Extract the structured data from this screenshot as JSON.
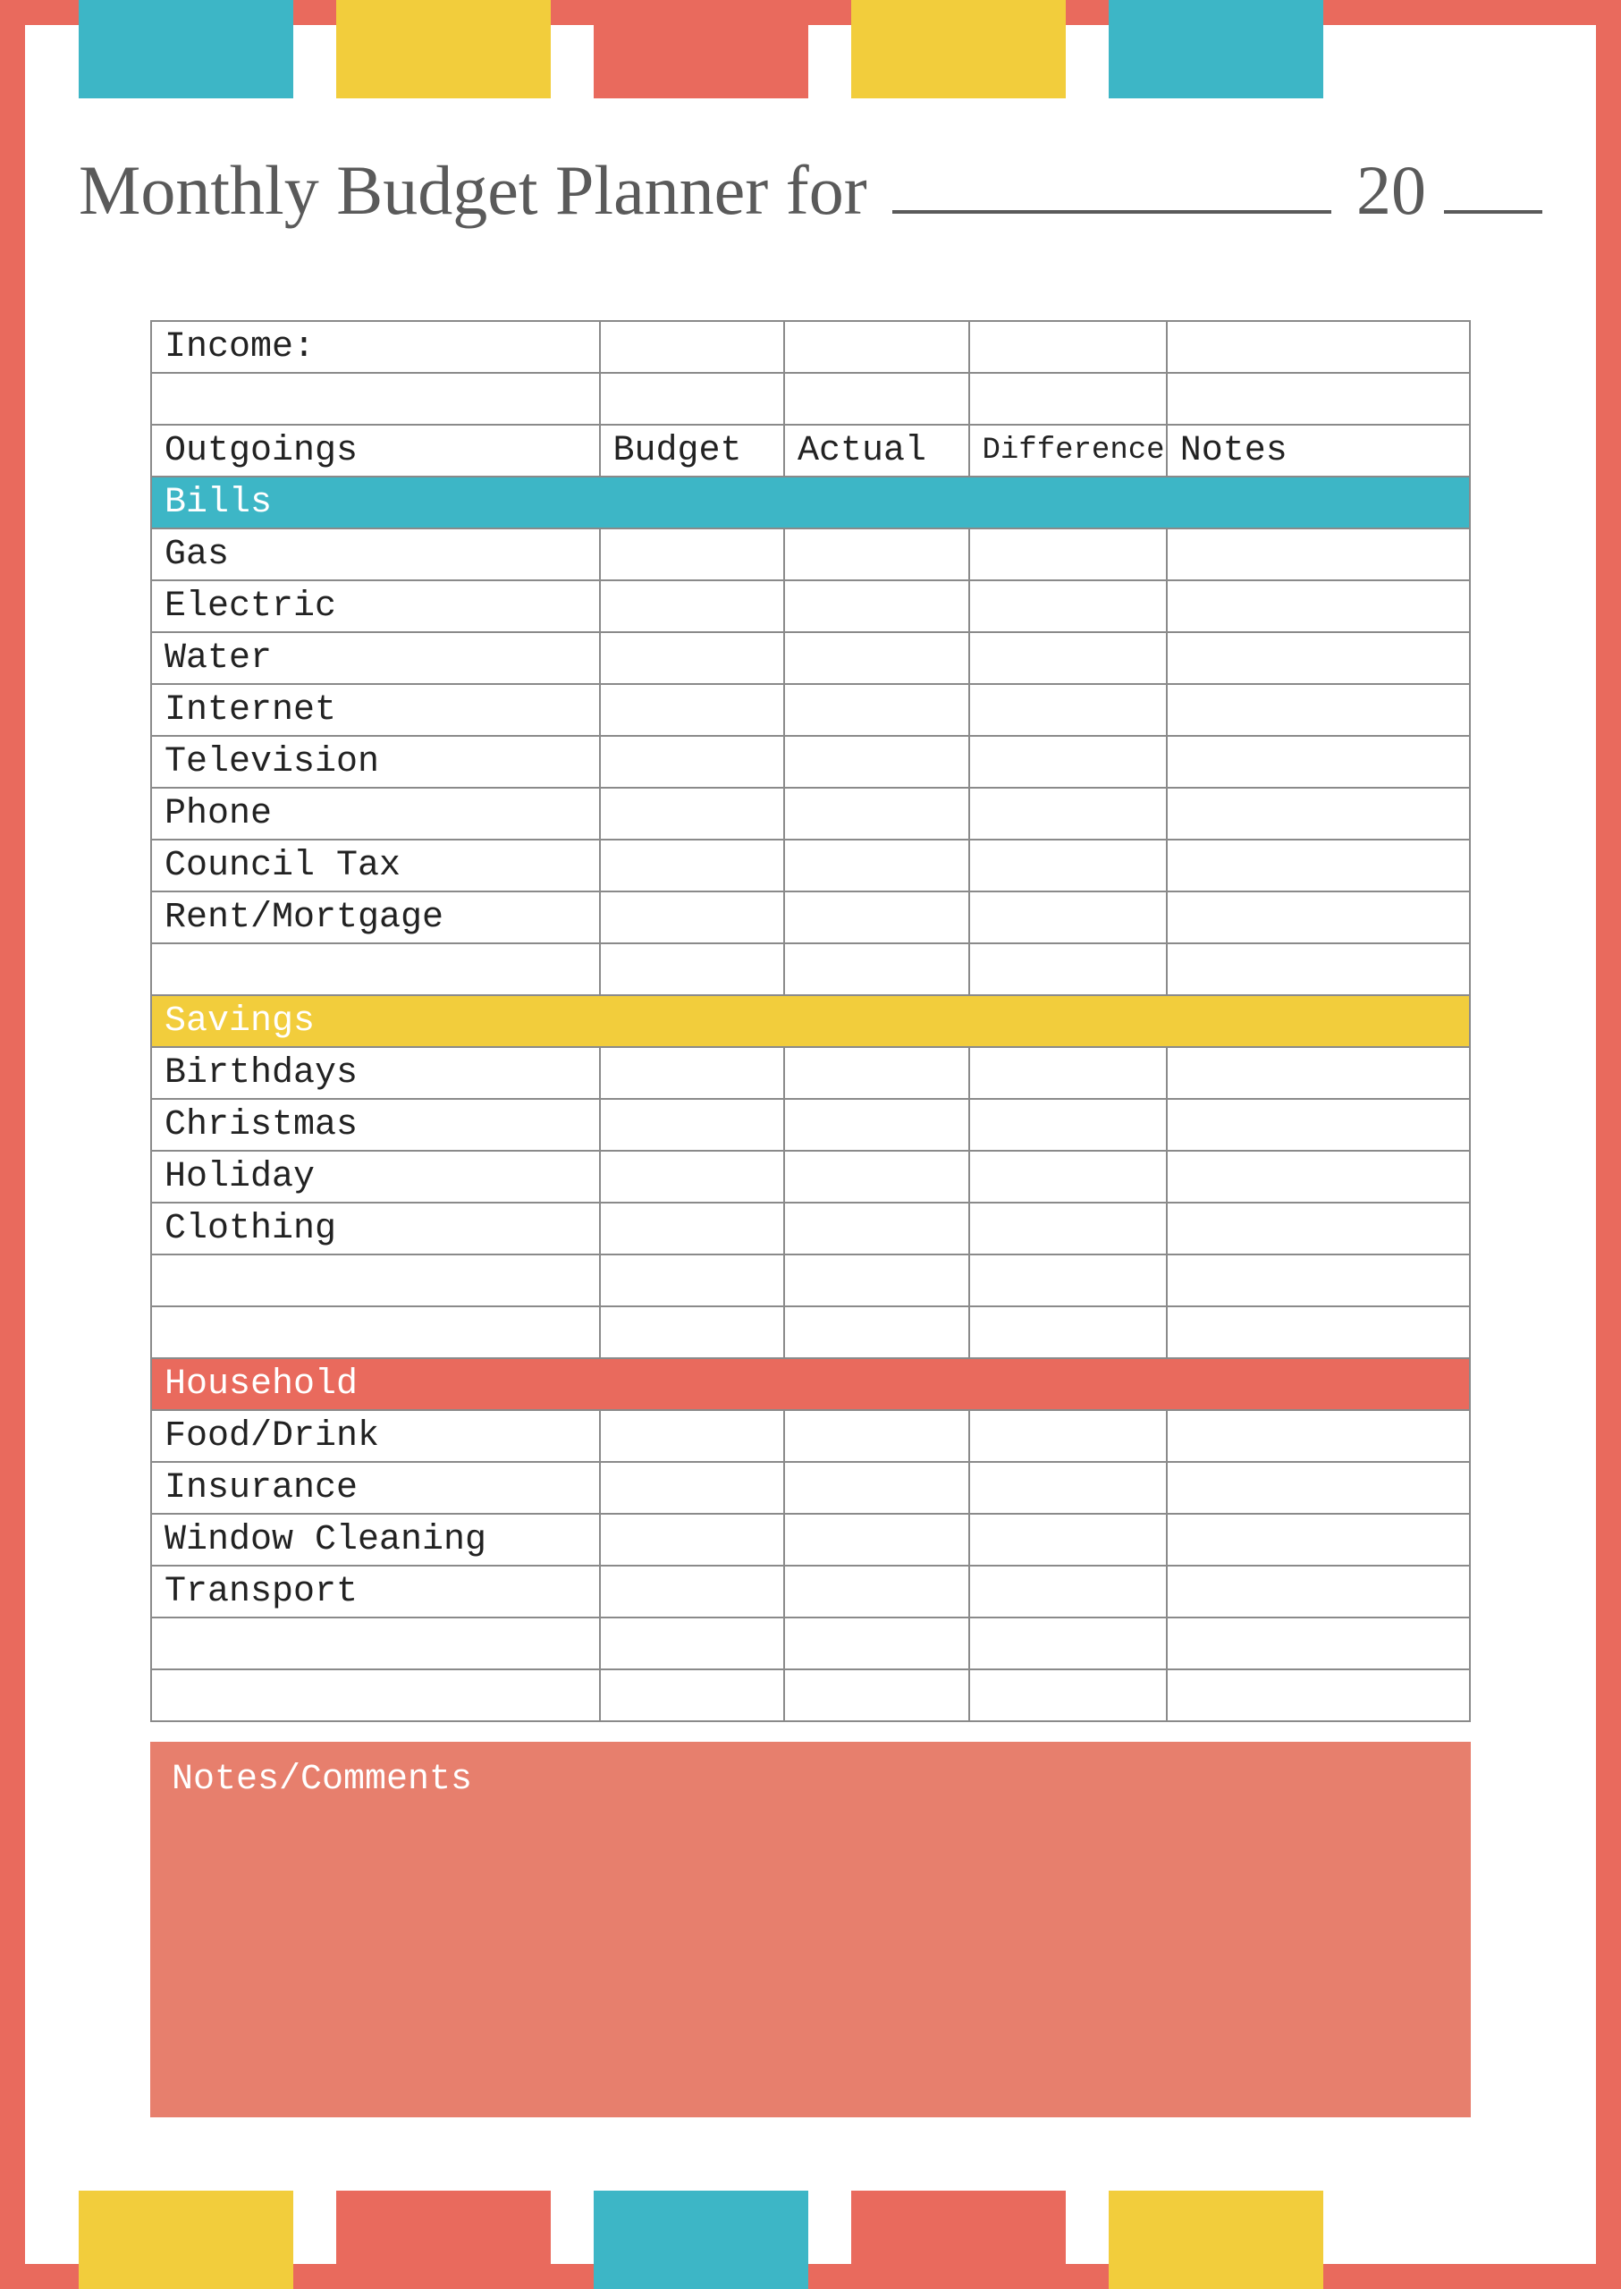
{
  "colors": {
    "border": "#e96a5d",
    "teal": "#3db6c6",
    "yellow": "#f2cd3c",
    "coral": "#e96a5d",
    "notes_bg": "#e77f6d",
    "text_grey": "#5a5a5a",
    "cell_border": "#8a8a8a"
  },
  "stripes_top": [
    "#3db6c6",
    "#f2cd3c",
    "#e96a5d",
    "#f2cd3c",
    "#3db6c6"
  ],
  "stripes_bottom": [
    "#f2cd3c",
    "#e96a5d",
    "#3db6c6",
    "#e96a5d",
    "#f2cd3c"
  ],
  "title": {
    "prefix": "Monthly Budget Planner for",
    "year_prefix": "20"
  },
  "header": {
    "income_label": "Income:",
    "columns": [
      "Outgoings",
      "Budget",
      "Actual",
      "Difference",
      "Notes"
    ]
  },
  "sections": [
    {
      "label": "Bills",
      "bg": "#3db6c6",
      "rows": [
        "Gas",
        "Electric",
        "Water",
        "Internet",
        "Television",
        "Phone",
        "Council Tax",
        "Rent/Mortgage"
      ],
      "blank_after": 1
    },
    {
      "label": "Savings",
      "bg": "#f2cd3c",
      "rows": [
        "Birthdays",
        "Christmas",
        "Holiday",
        "Clothing"
      ],
      "blank_after": 2
    },
    {
      "label": "Household",
      "bg": "#e96a5d",
      "rows": [
        "Food/Drink",
        "Insurance",
        "Window Cleaning",
        "Transport"
      ],
      "blank_after": 2
    }
  ],
  "notes_label": "Notes/Comments"
}
